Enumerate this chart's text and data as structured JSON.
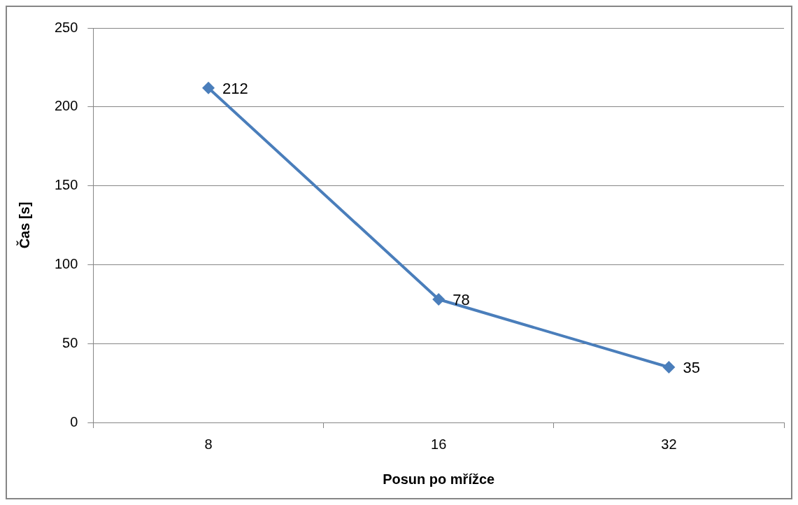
{
  "chart_data": {
    "type": "line",
    "xlabel": "Posun po mřížce",
    "ylabel": "Čas [s]",
    "categories": [
      "8",
      "16",
      "32"
    ],
    "series": [
      {
        "color": "#4a7ebb",
        "values": [
          212,
          78,
          35
        ]
      }
    ],
    "ylim": [
      0,
      250
    ],
    "yticks": [
      0,
      50,
      100,
      150,
      200,
      250
    ],
    "grid": "y",
    "legend": false,
    "marker": "diamond",
    "line_style": "solid",
    "data_labels": true
  }
}
